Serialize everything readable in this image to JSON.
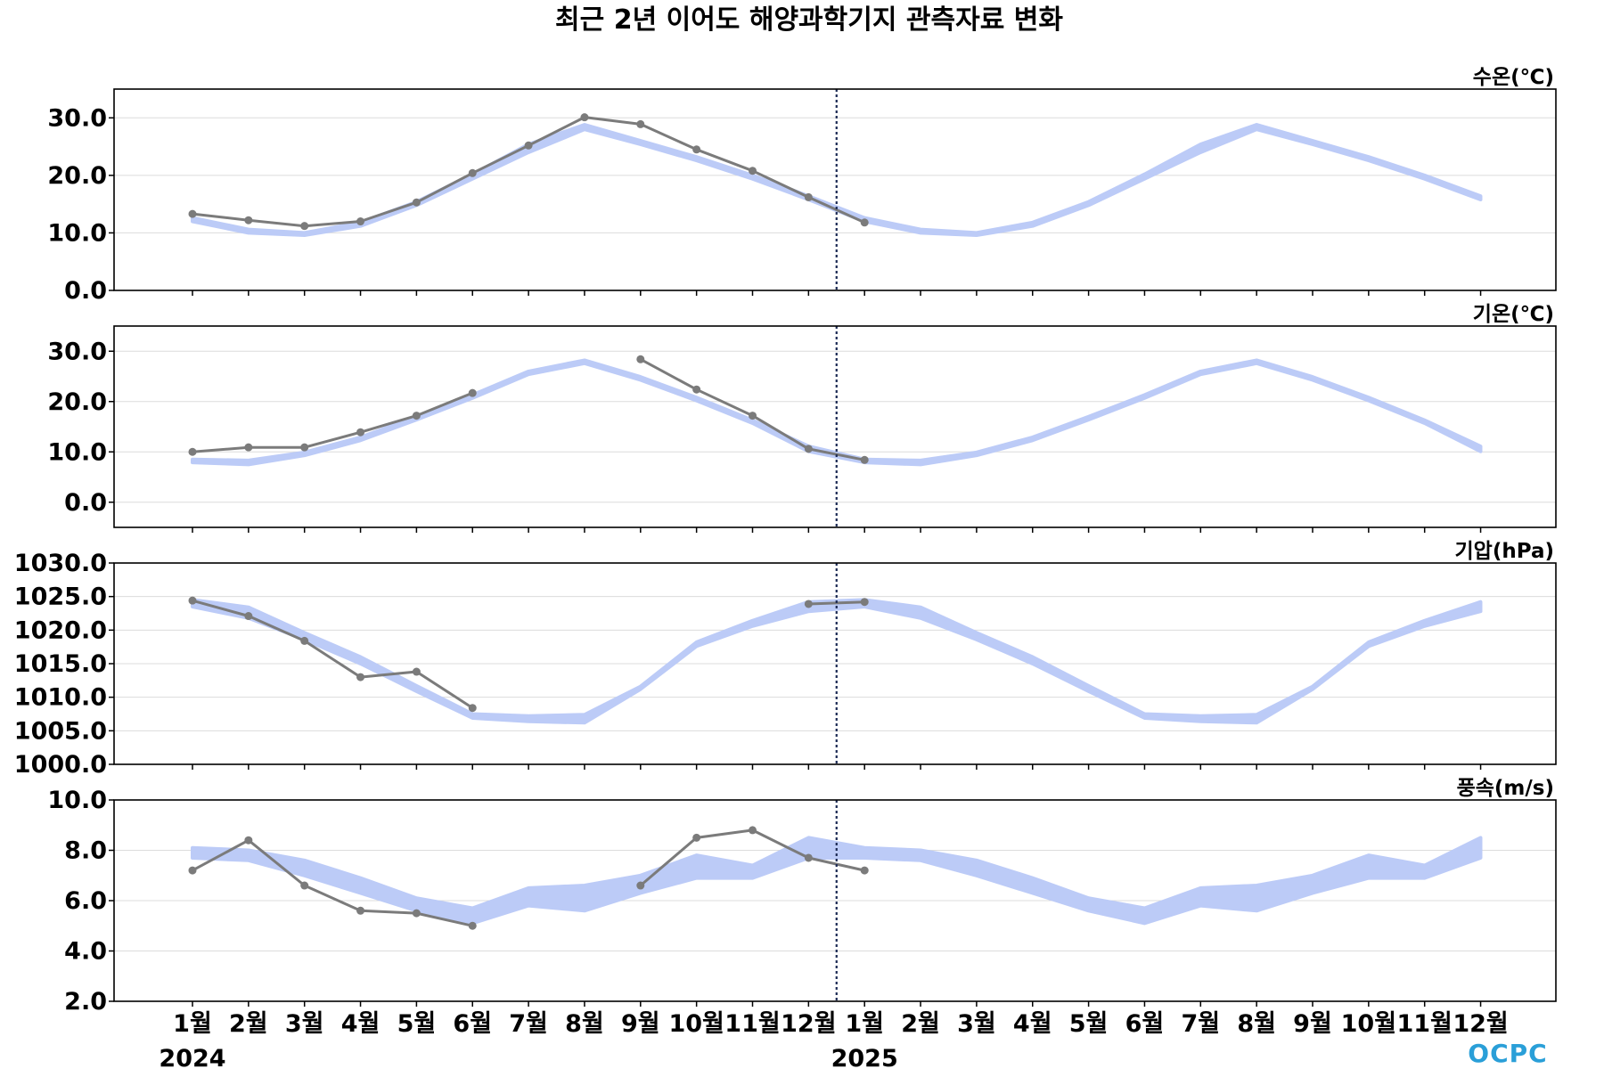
{
  "title": "최근 2년 이어도 해양과학기지 관측자료 변화",
  "logo": "OCPC",
  "colors": {
    "observed_line": "#7b7b7b",
    "climatology_band": "#bccbf7",
    "divider": "#1d2b55",
    "grid": "#dcdcdc",
    "logo": "#2a9fd8"
  },
  "chart_data": {
    "type": "line",
    "x_labels": [
      "1월",
      "2월",
      "3월",
      "4월",
      "5월",
      "6월",
      "7월",
      "8월",
      "9월",
      "10월",
      "11월",
      "12월",
      "1월",
      "2월",
      "3월",
      "4월",
      "5월",
      "6월",
      "7월",
      "8월",
      "9월",
      "10월",
      "11월",
      "12월"
    ],
    "years": [
      {
        "label": "2024",
        "index": 0
      },
      {
        "label": "2025",
        "index": 12
      }
    ],
    "divider_between": [
      11,
      12
    ],
    "panels": [
      {
        "unit": "수온(℃)",
        "ylim": [
          0,
          35
        ],
        "yticks": [
          "0.0",
          "10.0",
          "20.0",
          "30.0"
        ],
        "ytick_values": [
          0,
          10,
          20,
          30
        ],
        "climatology_low": [
          12.0,
          10.0,
          9.6,
          11.2,
          14.8,
          19.4,
          24.0,
          28.0,
          25.4,
          22.6,
          19.4,
          15.8,
          12.0,
          10.0,
          9.6,
          11.2,
          14.8,
          19.4,
          24.0,
          28.0,
          25.4,
          22.6,
          19.4,
          15.8
        ],
        "climatology_high": [
          12.6,
          10.6,
          10.0,
          11.8,
          15.4,
          20.2,
          25.4,
          28.8,
          26.0,
          23.2,
          20.0,
          16.4,
          12.6,
          10.6,
          10.0,
          11.8,
          15.4,
          20.2,
          25.4,
          28.8,
          26.0,
          23.2,
          20.0,
          16.4
        ],
        "observed": [
          13.3,
          12.2,
          11.2,
          12.0,
          15.3,
          20.4,
          25.2,
          30.1,
          28.9,
          24.5,
          20.8,
          16.2,
          11.8,
          null,
          null,
          null,
          null,
          null,
          null,
          null,
          null,
          null,
          null,
          null
        ]
      },
      {
        "unit": "기온(℃)",
        "ylim": [
          -5,
          35
        ],
        "yticks": [
          "0.0",
          "10.0",
          "20.0",
          "30.0"
        ],
        "ytick_values": [
          0,
          10,
          20,
          30
        ],
        "climatology_low": [
          7.9,
          7.5,
          9.3,
          12.3,
          16.4,
          20.7,
          25.4,
          27.6,
          24.3,
          20.2,
          15.7,
          10.1,
          7.9,
          7.5,
          9.3,
          12.3,
          16.4,
          20.7,
          25.4,
          27.6,
          24.3,
          20.2,
          15.7,
          10.1
        ],
        "climatology_high": [
          8.5,
          8.3,
          9.9,
          12.9,
          17.0,
          21.3,
          26.0,
          28.2,
          24.9,
          20.8,
          16.3,
          11.1,
          8.5,
          8.3,
          9.9,
          12.9,
          17.0,
          21.3,
          26.0,
          28.2,
          24.9,
          20.8,
          16.3,
          11.1
        ],
        "observed": [
          10.0,
          10.9,
          10.9,
          13.9,
          17.2,
          21.7,
          null,
          null,
          28.4,
          22.4,
          17.2,
          10.6,
          8.4,
          null,
          null,
          null,
          null,
          null,
          null,
          null,
          null,
          null,
          null,
          null
        ]
      },
      {
        "unit": "기압(hPa)",
        "ylim": [
          1000,
          1030
        ],
        "yticks": [
          "1000.0",
          "1005.0",
          "1010.0",
          "1015.0",
          "1020.0",
          "1025.0",
          "1030.0"
        ],
        "ytick_values": [
          1000,
          1005,
          1010,
          1015,
          1020,
          1025,
          1030
        ],
        "climatology_low": [
          1023.5,
          1021.8,
          1018.6,
          1015.0,
          1010.9,
          1006.9,
          1006.4,
          1006.2,
          1011.2,
          1017.6,
          1020.6,
          1022.8,
          1023.5,
          1021.8,
          1018.6,
          1015.0,
          1010.9,
          1006.9,
          1006.4,
          1006.2,
          1011.2,
          1017.6,
          1020.6,
          1022.8
        ],
        "climatology_high": [
          1024.5,
          1023.4,
          1019.6,
          1016.0,
          1011.7,
          1007.5,
          1007.2,
          1007.4,
          1011.6,
          1018.2,
          1021.4,
          1024.2,
          1024.5,
          1023.4,
          1019.6,
          1016.0,
          1011.7,
          1007.5,
          1007.2,
          1007.4,
          1011.6,
          1018.2,
          1021.4,
          1024.2
        ],
        "observed": [
          1024.4,
          1022.1,
          1018.4,
          1013.0,
          1013.8,
          1008.4,
          null,
          null,
          null,
          null,
          null,
          1023.9,
          1024.2,
          null,
          null,
          null,
          null,
          null,
          null,
          null,
          null,
          null,
          null,
          null
        ]
      },
      {
        "unit": "풍속(m/s)",
        "ylim": [
          2,
          10
        ],
        "yticks": [
          "2.0",
          "4.0",
          "6.0",
          "8.0",
          "10.0"
        ],
        "ytick_values": [
          2,
          4,
          6,
          8,
          10
        ],
        "climatology_low": [
          7.7,
          7.6,
          7.0,
          6.3,
          5.6,
          5.1,
          5.8,
          5.6,
          6.3,
          6.9,
          6.9,
          7.7,
          7.7,
          7.6,
          7.0,
          6.3,
          5.6,
          5.1,
          5.8,
          5.6,
          6.3,
          6.9,
          6.9,
          7.7
        ],
        "climatology_high": [
          8.1,
          8.0,
          7.6,
          6.9,
          6.1,
          5.7,
          6.5,
          6.6,
          7.0,
          7.8,
          7.4,
          8.5,
          8.1,
          8.0,
          7.6,
          6.9,
          6.1,
          5.7,
          6.5,
          6.6,
          7.0,
          7.8,
          7.4,
          8.5
        ],
        "observed": [
          7.2,
          8.4,
          6.6,
          5.6,
          5.5,
          5.0,
          null,
          null,
          6.6,
          8.5,
          8.8,
          7.7,
          7.2,
          null,
          null,
          null,
          null,
          null,
          null,
          null,
          null,
          null,
          null,
          null
        ]
      }
    ]
  }
}
